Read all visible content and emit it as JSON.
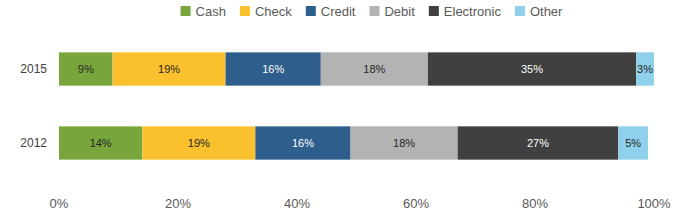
{
  "chart_data": {
    "type": "bar",
    "orientation": "horizontal",
    "stacked": true,
    "data_labels": true,
    "legend": "top",
    "grid": false,
    "categories": [
      "2015",
      "2012"
    ],
    "series": [
      {
        "name": "Cash",
        "color": "#78a63c",
        "values": [
          9,
          14
        ],
        "value_labels": [
          "9%",
          "14%"
        ]
      },
      {
        "name": "Check",
        "color": "#fbc02d",
        "values": [
          19,
          19
        ],
        "value_labels": [
          "19%",
          "19%"
        ]
      },
      {
        "name": "Credit",
        "color": "#2e5e8c",
        "values": [
          16,
          16
        ],
        "value_labels": [
          "16%",
          "16%"
        ]
      },
      {
        "name": "Debit",
        "color": "#b3b3b3",
        "values": [
          18,
          18
        ],
        "value_labels": [
          "18%",
          "18%"
        ]
      },
      {
        "name": "Electronic",
        "color": "#404040",
        "values": [
          35,
          27
        ],
        "value_labels": [
          "35%",
          "27%"
        ]
      },
      {
        "name": "Other",
        "color": "#8fd0ea",
        "values": [
          3,
          5
        ],
        "value_labels": [
          "3%",
          "5%"
        ]
      }
    ],
    "xlim": [
      0,
      100
    ],
    "xticks": [
      {
        "value": 0,
        "label": "0%"
      },
      {
        "value": 20,
        "label": "20%"
      },
      {
        "value": 40,
        "label": "40%"
      },
      {
        "value": 60,
        "label": "60%"
      },
      {
        "value": 80,
        "label": "80%"
      },
      {
        "value": 100,
        "label": "100%"
      }
    ]
  }
}
